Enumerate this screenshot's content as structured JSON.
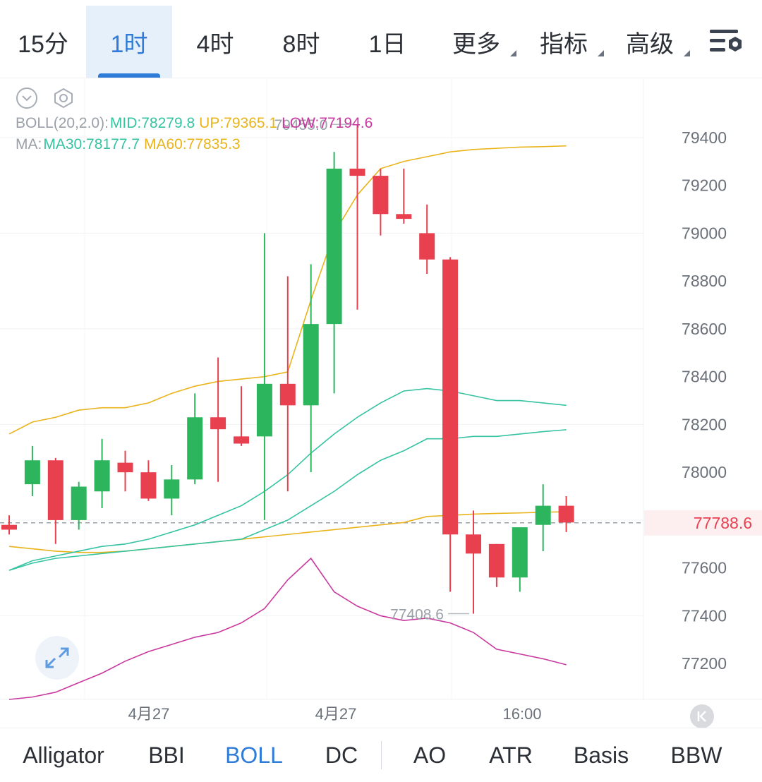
{
  "timeframe_tabs": [
    {
      "label": "15分",
      "active": false
    },
    {
      "label": "1时",
      "active": true
    },
    {
      "label": "4时",
      "active": false
    },
    {
      "label": "8时",
      "active": false
    },
    {
      "label": "1日",
      "active": false
    }
  ],
  "dropdown_tabs": [
    {
      "label": "更多"
    },
    {
      "label": "指标"
    },
    {
      "label": "高级"
    }
  ],
  "icons": {
    "settings": "settings-icon",
    "collapse": "chevron-down-icon",
    "chart_settings": "hexagon-settings-icon",
    "expand": "expand-arrows-icon",
    "back": "back-to-latest-icon"
  },
  "legend": {
    "boll": {
      "name": "BOLL(20,2.0):",
      "mid": "MID:78279.8",
      "up": "UP:79365.1",
      "low": "LOW:77194.6"
    },
    "ma": {
      "name": "MA:",
      "ma30": "MA30:78177.7",
      "ma60": "MA60:77835.3"
    }
  },
  "price_axis": {
    "ticks": [
      "79400",
      "79200",
      "79000",
      "78800",
      "78600",
      "78400",
      "78200",
      "78000",
      "77600",
      "77400",
      "77200"
    ],
    "current_price": "77788.6"
  },
  "time_axis": {
    "labels": [
      "4月27",
      "4月27",
      "16:00"
    ]
  },
  "annotations": {
    "high": "79455.0",
    "low": "77408.6"
  },
  "indicator_tabs": [
    {
      "label": "Alligator",
      "active": false
    },
    {
      "label": "BBI",
      "active": false
    },
    {
      "label": "BOLL",
      "active": true
    },
    {
      "label": "DC",
      "active": false
    },
    {
      "label": "AO",
      "active": false
    },
    {
      "label": "ATR",
      "active": false
    },
    {
      "label": "Basis",
      "active": false
    },
    {
      "label": "BBW",
      "active": false
    }
  ],
  "colors": {
    "up": "#2db55d",
    "down": "#e8404f",
    "mid": "#35c3a1",
    "upper": "#e9b31b",
    "lower": "#c9389e",
    "ma30": "#35c3a1",
    "ma60": "#e9b31b",
    "accent": "#2f7bd8"
  },
  "chart_data": {
    "type": "candlestick",
    "y_range": [
      77050,
      79500
    ],
    "candles": [
      {
        "o": 77780,
        "h": 77820,
        "l": 77740,
        "c": 77760
      },
      {
        "o": 77950,
        "h": 78110,
        "l": 77900,
        "c": 78050
      },
      {
        "o": 78050,
        "h": 78060,
        "l": 77700,
        "c": 77800
      },
      {
        "o": 77800,
        "h": 77960,
        "l": 77760,
        "c": 77940
      },
      {
        "o": 77920,
        "h": 78140,
        "l": 77850,
        "c": 78050
      },
      {
        "o": 78040,
        "h": 78090,
        "l": 77920,
        "c": 78000
      },
      {
        "o": 78000,
        "h": 78050,
        "l": 77880,
        "c": 77890
      },
      {
        "o": 77890,
        "h": 78030,
        "l": 77820,
        "c": 77970
      },
      {
        "o": 77970,
        "h": 78330,
        "l": 77950,
        "c": 78230
      },
      {
        "o": 78230,
        "h": 78480,
        "l": 77960,
        "c": 78180
      },
      {
        "o": 78150,
        "h": 78360,
        "l": 78110,
        "c": 78120
      },
      {
        "o": 78150,
        "h": 79000,
        "l": 77800,
        "c": 78370
      },
      {
        "o": 78370,
        "h": 78820,
        "l": 77920,
        "c": 78280
      },
      {
        "o": 78280,
        "h": 78870,
        "l": 78000,
        "c": 78620
      },
      {
        "o": 78620,
        "h": 79340,
        "l": 78330,
        "c": 79270
      },
      {
        "o": 79270,
        "h": 79455,
        "l": 78680,
        "c": 79240
      },
      {
        "o": 79240,
        "h": 79270,
        "l": 78990,
        "c": 79080
      },
      {
        "o": 79080,
        "h": 79270,
        "l": 79040,
        "c": 79060
      },
      {
        "o": 79000,
        "h": 79120,
        "l": 78830,
        "c": 78890
      },
      {
        "o": 78890,
        "h": 78900,
        "l": 77500,
        "c": 77740
      },
      {
        "o": 77740,
        "h": 77840,
        "l": 77408.6,
        "c": 77660
      },
      {
        "o": 77700,
        "h": 77700,
        "l": 77520,
        "c": 77560
      },
      {
        "o": 77560,
        "h": 77760,
        "l": 77500,
        "c": 77770
      },
      {
        "o": 77780,
        "h": 77950,
        "l": 77670,
        "c": 77860
      },
      {
        "o": 77860,
        "h": 77900,
        "l": 77750,
        "c": 77790
      }
    ],
    "boll_mid": [
      77590,
      77630,
      77650,
      77670,
      77690,
      77700,
      77720,
      77750,
      77780,
      77820,
      77860,
      77920,
      77990,
      78080,
      78160,
      78230,
      78290,
      78340,
      78350,
      78340,
      78320,
      78300,
      78300,
      78290,
      78280
    ],
    "boll_up": [
      78160,
      78210,
      78230,
      78260,
      78270,
      78270,
      78290,
      78330,
      78360,
      78380,
      78390,
      78400,
      78420,
      78720,
      79000,
      79160,
      79270,
      79300,
      79320,
      79340,
      79350,
      79355,
      79360,
      79362,
      79365
    ],
    "boll_low": [
      77050,
      77060,
      77080,
      77120,
      77160,
      77210,
      77250,
      77280,
      77310,
      77330,
      77370,
      77430,
      77550,
      77640,
      77500,
      77440,
      77400,
      77380,
      77390,
      77370,
      77330,
      77260,
      77240,
      77220,
      77195
    ],
    "ma30": [
      77590,
      77620,
      77640,
      77650,
      77660,
      77670,
      77680,
      77690,
      77700,
      77710,
      77720,
      77760,
      77800,
      77860,
      77920,
      77990,
      78050,
      78090,
      78140,
      78140,
      78150,
      78150,
      78160,
      78170,
      78178
    ],
    "ma60": [
      77690,
      77680,
      77670,
      77665,
      77665,
      77670,
      77680,
      77690,
      77700,
      77710,
      77720,
      77730,
      77740,
      77750,
      77760,
      77770,
      77780,
      77790,
      77815,
      77820,
      77825,
      77828,
      77830,
      77833,
      77835
    ]
  }
}
